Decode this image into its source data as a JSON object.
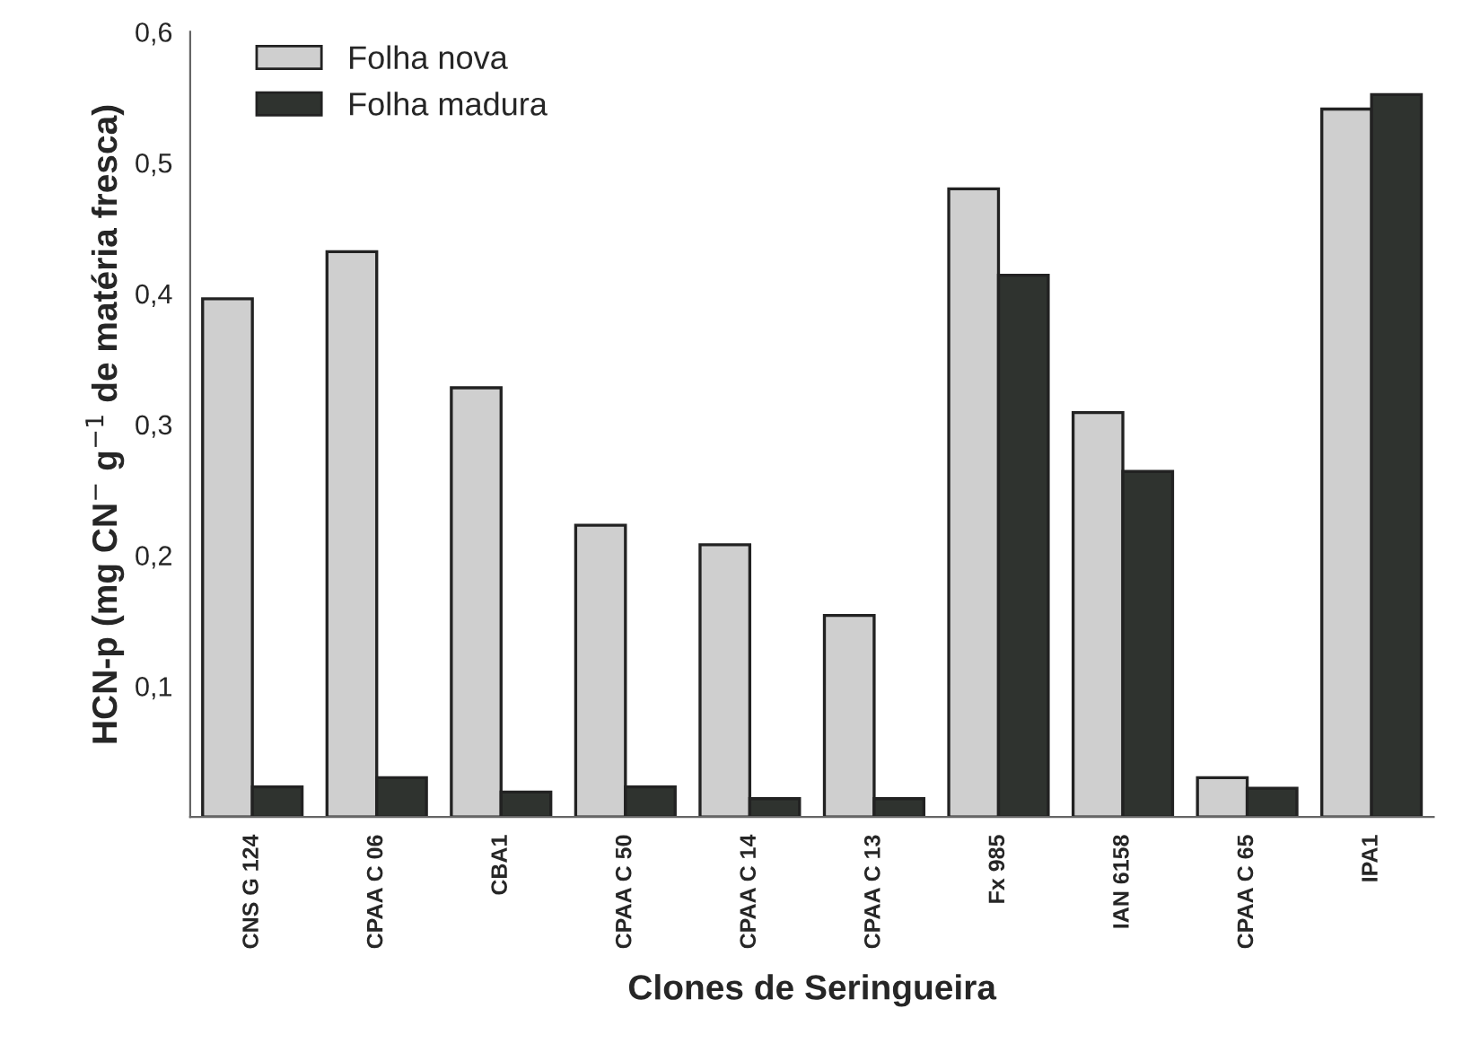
{
  "chart_data": {
    "type": "bar",
    "xlabel": "Clones de Seringueira",
    "ylabel": "HCN-p (mg CN$^{−}$ g$^{−1}$ de matéria fresca)",
    "categories": [
      "CNS G 124",
      "CPAA C 06",
      "CBA1",
      "CPAA C 50",
      "CPAA C 14",
      "CPAA C 13",
      "Fx 985",
      "IAN 6158",
      "CPAA C 65",
      "IPA1"
    ],
    "series": [
      {
        "name": "Folha nova",
        "color": "#cfcfcf",
        "values": [
          0.396,
          0.432,
          0.328,
          0.223,
          0.208,
          0.154,
          0.48,
          0.309,
          0.03,
          0.541
        ]
      },
      {
        "name": "Folha madura",
        "color": "#2f332f",
        "values": [
          0.023,
          0.03,
          0.019,
          0.023,
          0.014,
          0.014,
          0.414,
          0.264,
          0.022,
          0.552
        ]
      }
    ],
    "ylim": [
      0,
      0.6
    ],
    "yticks": [
      {
        "value": 0.1,
        "label": "0,1"
      },
      {
        "value": 0.2,
        "label": "0,2"
      },
      {
        "value": 0.3,
        "label": "0,3"
      },
      {
        "value": 0.4,
        "label": "0,4"
      },
      {
        "value": 0.5,
        "label": "0,5"
      },
      {
        "value": 0.6,
        "label": "0,6"
      }
    ],
    "grid": false,
    "legend": "top left"
  }
}
